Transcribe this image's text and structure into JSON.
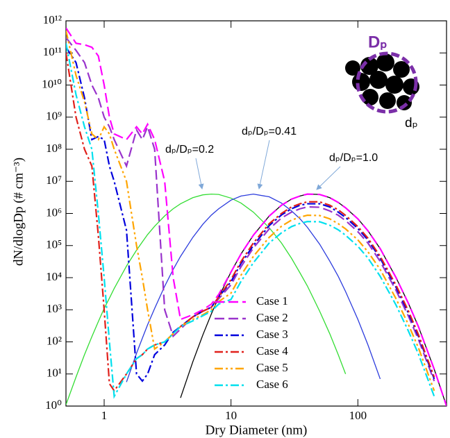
{
  "chart_data": {
    "type": "line",
    "xlabel": "Dry Diameter (nm)",
    "ylabel": "dN/dlogDp (# cm⁻³)",
    "xscale": "log",
    "yscale": "log",
    "xlim": [
      0.5,
      500
    ],
    "ylim": [
      1,
      1000000000000.0
    ],
    "xticks": [
      1,
      10,
      100
    ],
    "yticks": [
      {
        "value": 1,
        "label": "10⁰"
      },
      {
        "value": 10,
        "label": "10¹"
      },
      {
        "value": 100,
        "label": "10²"
      },
      {
        "value": 1000,
        "label": "10³"
      },
      {
        "value": 10000,
        "label": "10⁴"
      },
      {
        "value": 100000,
        "label": "10⁵"
      },
      {
        "value": 1000000,
        "label": "10⁶"
      },
      {
        "value": 10000000,
        "label": "10⁷"
      },
      {
        "value": 100000000,
        "label": "10⁸"
      },
      {
        "value": 1000000000,
        "label": "10⁹"
      },
      {
        "value": 10000000000,
        "label": "10¹⁰"
      },
      {
        "value": 100000000000,
        "label": "10¹¹"
      },
      {
        "value": 1000000000000,
        "label": "10¹²"
      }
    ],
    "legend_position": "lower center",
    "annotations": [
      "dₚ/Dₚ=0.2",
      "dₚ/Dₚ=0.41",
      "dₚ/Dₚ=1.0"
    ],
    "inset_labels": [
      "Dₚ",
      "dₚ"
    ],
    "x": [
      0.5,
      0.6,
      0.7,
      0.8,
      0.9,
      1,
      1.1,
      1.2,
      1.5,
      1.8,
      2,
      2.2,
      2.5,
      3,
      3.5,
      4,
      5,
      6,
      7,
      8,
      10,
      12,
      15,
      20,
      25,
      30,
      35,
      40,
      50,
      60,
      70,
      80,
      100,
      120,
      150,
      200,
      250,
      300,
      400,
      500
    ],
    "series": [
      {
        "color": "#33dd33",
        "line_style": "solid",
        "values": [
          1.1,
          8,
          40,
          145,
          430,
          1100,
          2300,
          4600,
          23000,
          72000,
          130000,
          220000,
          400000,
          840000,
          1400000.0,
          2000000.0,
          3100000.0,
          3800000.0,
          4000000.0,
          3900000.0,
          3000000.0,
          2100000.0,
          1100000.0,
          360000.0,
          120000.0,
          40000.0,
          14000.0,
          5500,
          900,
          180,
          40,
          10,
          null,
          null,
          null,
          null,
          null,
          null,
          null,
          null
        ]
      },
      {
        "color": "#2b3bdd",
        "line_style": "solid",
        "values": [
          null,
          null,
          null,
          null,
          null,
          null,
          null,
          null,
          5.6,
          44,
          130,
          340,
          1100,
          5400,
          18000.0,
          46000.0,
          180000.0,
          460000.0,
          890000.0,
          1400000.0,
          2600000.0,
          3500000.0,
          4000000.0,
          3300000.0,
          2100000.0,
          1200000.0,
          680000.0,
          370000.0,
          110000.0,
          33000.0,
          11000.0,
          3700,
          500,
          81,
          7,
          null,
          null,
          null,
          null,
          null
        ]
      },
      {
        "color": "#000000",
        "line_style": "solid",
        "values": [
          null,
          null,
          null,
          null,
          null,
          null,
          null,
          null,
          null,
          null,
          null,
          null,
          null,
          null,
          null,
          1.8,
          24,
          165,
          740,
          2500,
          15000.0,
          55000.0,
          210000.0,
          830000.0,
          1800000.0,
          2800000.0,
          3500000.0,
          4000000.0,
          3900000.0,
          3100000.0,
          2200000.0,
          1500000.0,
          680000.0,
          290000.0,
          80000.0,
          10000.0,
          1600,
          300,
          14,
          1
        ]
      },
      {
        "name": "Case 1",
        "color": "#ff00ff",
        "line_style": "dashed",
        "values": [
          600000000000.0,
          200000000000.0,
          180000000000.0,
          150000000000.0,
          80000000000.0,
          10000000000.0,
          1000000000.0,
          300000000.0,
          200000000.0,
          500000000.0,
          300000000.0,
          600000000.0,
          200000000.0,
          10000000.0,
          10000.0,
          500,
          700,
          1000,
          1500,
          3000,
          15000.0,
          55000.0,
          210000.0,
          830000.0,
          1800000.0,
          2800000.0,
          3500000.0,
          4000000.0,
          3900000.0,
          3100000.0,
          2200000.0,
          1500000.0,
          680000.0,
          290000.0,
          80000.0,
          10000.0,
          1600,
          300,
          14,
          1
        ]
      },
      {
        "name": "Case 2",
        "color": "#9933cc",
        "line_style": "dashed",
        "values": [
          300000000000.0,
          120000000000.0,
          50000000000.0,
          10000000000.0,
          4000000000.0,
          1000000000.0,
          500000000.0,
          200000000.0,
          30000000.0,
          400000000.0,
          200000000.0,
          500000000.0,
          100000000.0,
          1000,
          150,
          250,
          600,
          900,
          1200,
          2200,
          6000,
          22000.0,
          84000.0,
          330000.0,
          720000.0,
          1100000.0,
          1400000.0,
          1600000.0,
          1560000.0,
          1200000.0,
          880000.0,
          600000.0,
          270000.0,
          120000.0,
          32000.0,
          4000,
          640,
          120,
          6,
          null
        ]
      },
      {
        "name": "Case 3",
        "color": "#0000dd",
        "line_style": "dashdot",
        "values": [
          150000000000.0,
          50000000000.0,
          4000000000.0,
          200000000.0,
          250000000.0,
          200000000.0,
          30000000.0,
          10000000.0,
          300000.0,
          10,
          6,
          10,
          40,
          80,
          200,
          300,
          600,
          900,
          1200,
          2500,
          7500,
          28000.0,
          100000.0,
          420000.0,
          900000.0,
          1400000.0,
          1800000.0,
          2000000.0,
          2000000.0,
          1600000.0,
          1100000.0,
          750000.0,
          340000.0,
          150000.0,
          40000.0,
          5000,
          800,
          150,
          7,
          null
        ]
      },
      {
        "name": "Case 4",
        "color": "#e0201b",
        "line_style": "dashdot",
        "values": [
          100000000000.0,
          1000000000.0,
          100000000.0,
          30000000.0,
          200000.0,
          1000,
          5,
          3,
          10,
          30,
          40,
          60,
          80,
          100,
          180,
          300,
          600,
          900,
          1200,
          2500,
          8700,
          32000.0,
          120000.0,
          480000.0,
          1000000.0,
          1600000.0,
          2000000.0,
          2300000.0,
          2300000.0,
          1800000.0,
          1300000.0,
          870000.0,
          390000.0,
          170000.0,
          46000.0,
          5800,
          930,
          170,
          8,
          null
        ]
      },
      {
        "name": "Case 5",
        "color": "#ffa500",
        "line_style": "dashdotdot",
        "values": [
          500000000000.0,
          20000000000.0,
          3000000000.0,
          300000000.0,
          200000000.0,
          500000000.0,
          300000000.0,
          100000000.0,
          10000000.0,
          100000.0,
          10000.0,
          1000,
          60,
          100,
          180,
          300,
          500,
          700,
          1000,
          1800,
          3300,
          12000.0,
          46000.0,
          180000.0,
          400000.0,
          620000.0,
          770000.0,
          880000.0,
          860000.0,
          680000.0,
          480000.0,
          330000.0,
          150000.0,
          64000.0,
          18000.0,
          2200,
          350,
          66,
          3,
          null
        ]
      },
      {
        "name": "Case 6",
        "color": "#00e0ee",
        "line_style": "dashdot",
        "values": [
          200000000000.0,
          5000000000.0,
          500000000.0,
          100000000.0,
          1000000.0,
          10000.0,
          100,
          2,
          10,
          30,
          40,
          60,
          80,
          100,
          180,
          300,
          450,
          650,
          900,
          1500,
          2100,
          7700,
          29000.0,
          120000.0,
          250000.0,
          390000.0,
          490000.0,
          560000.0,
          550000.0,
          430000.0,
          310000.0,
          210000.0,
          95000.0,
          41000.0,
          11000.0,
          1400,
          220,
          42,
          2,
          null
        ]
      }
    ]
  }
}
